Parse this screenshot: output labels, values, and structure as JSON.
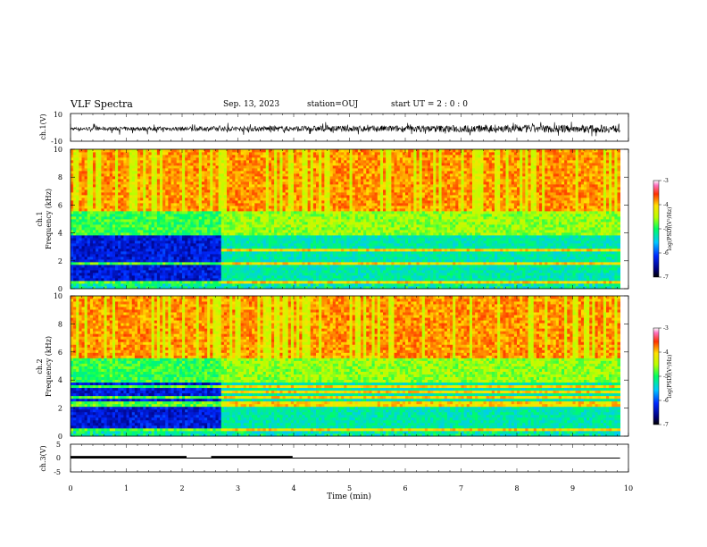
{
  "header": {
    "title": "VLF Spectra",
    "date": "Sep. 13, 2023",
    "station": "station=OUJ",
    "start": "start  UT =  2 : 0 : 0"
  },
  "chart_data": [
    {
      "type": "line",
      "ylabel": "ch.1(V)",
      "ylim": [
        -10,
        10
      ],
      "yticks": [
        "10",
        "-10"
      ],
      "xlim": [
        0,
        10
      ],
      "description_values": {
        "mean": -1,
        "noise_amplitude": 3
      }
    },
    {
      "type": "heatmap",
      "ylabel": "ch.1\nFrequency (kHz)",
      "ylabel_lines": [
        "ch.1",
        "Frequency (kHz)"
      ],
      "ylim": [
        0,
        10
      ],
      "yticks": [
        "0",
        "2",
        "4",
        "6",
        "8",
        "10"
      ],
      "xlim": [
        0,
        9.85
      ],
      "colorbar": {
        "label": "log(PSD)(V²/Hz)",
        "range": [
          -7,
          -3
        ],
        "ticks": [
          "-3",
          "-4",
          "-5",
          "-6",
          "-7"
        ]
      }
    },
    {
      "type": "heatmap",
      "ylabel": "ch.2\nFrequency (kHz)",
      "ylabel_lines": [
        "ch.2",
        "Frequency (kHz)"
      ],
      "ylim": [
        0,
        10
      ],
      "yticks": [
        "0",
        "2",
        "4",
        "6",
        "8",
        "10"
      ],
      "xlim": [
        0,
        9.85
      ],
      "colorbar": {
        "label": "log(PSD)(V²/Hz)",
        "range": [
          -7,
          -3
        ],
        "ticks": [
          "-3",
          "-4",
          "-5",
          "-6",
          "-7"
        ]
      }
    },
    {
      "type": "line",
      "ylabel": "ch.3(V)",
      "ylim": [
        -5,
        5
      ],
      "yticks": [
        "5",
        "0",
        "-5"
      ],
      "xlim": [
        0,
        10
      ],
      "xlabel": "Time (min)",
      "xticks": [
        "0",
        "1",
        "2",
        "3",
        "4",
        "5",
        "6",
        "7",
        "8",
        "9",
        "10"
      ],
      "segments": [
        {
          "x": [
            0,
            2.08
          ],
          "y": 0.6
        },
        {
          "x": [
            2.52,
            3.98
          ],
          "y": 0.6
        }
      ],
      "baseline": {
        "x": [
          0,
          9.85
        ],
        "y": 0
      }
    }
  ]
}
